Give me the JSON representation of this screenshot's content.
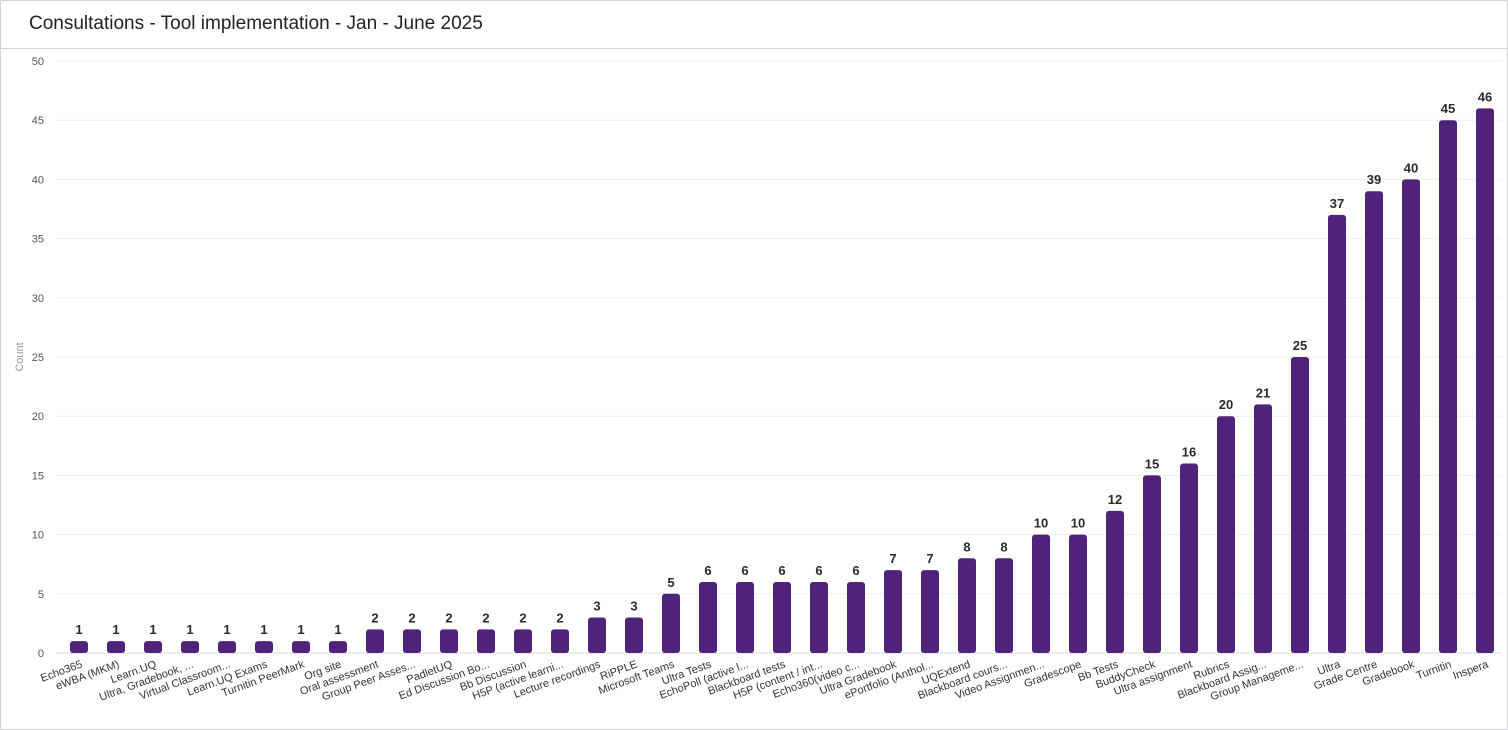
{
  "header": {
    "title": "Consultations - Tool implementation - Jan - June 2025"
  },
  "chart_data": {
    "type": "bar",
    "title": "Consultations - Tool implementation - Jan - June 2025",
    "xlabel": "",
    "ylabel": "Count",
    "ylim": [
      0,
      50
    ],
    "yticks": [
      0,
      5,
      10,
      15,
      20,
      25,
      30,
      35,
      40,
      45,
      50
    ],
    "grid": true,
    "legend": "none",
    "bar_color": "#4f237a",
    "categories": [
      "Echo365",
      "eWBA (MKM)",
      "Learn.UQ",
      "Ultra, Gradebook, ...",
      "Virtual Classroom...",
      "Learn.UQ Exams",
      "Turnitin PeerMark",
      "Org site",
      "Oral assessment",
      "Group Peer Asses...",
      "PadletUQ",
      "Ed Discussion Bo...",
      "Bb Discussion",
      "H5P (active learni...",
      "Lecture recordings",
      "RiPPLE",
      "Microsoft Teams",
      "Ultra Tests",
      "EchoPoll (active l...",
      "Blackboard tests",
      "H5P (content / int...",
      "Echo360(video c...",
      "Ultra Gradebook",
      "ePortfolio (Anthol...",
      "UQExtend",
      "Blackboard cours...",
      "Video Assignmen...",
      "Gradescope",
      "Bb Tests",
      "BuddyCheck",
      "Ultra assignment",
      "Rubrics",
      "Blackboard Assig...",
      "Group Manageme...",
      "Ultra",
      "Grade Centre",
      "Gradebook",
      "Turnitin",
      "Inspera"
    ],
    "values": [
      1,
      1,
      1,
      1,
      1,
      1,
      1,
      1,
      2,
      2,
      2,
      2,
      2,
      2,
      3,
      3,
      5,
      6,
      6,
      6,
      6,
      6,
      7,
      7,
      8,
      8,
      10,
      10,
      12,
      15,
      16,
      20,
      21,
      25,
      37,
      39,
      40,
      45,
      46
    ]
  }
}
